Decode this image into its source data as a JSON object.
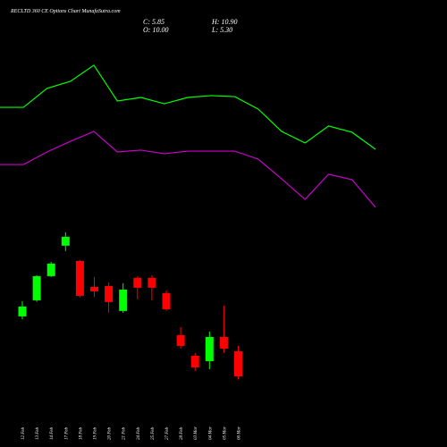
{
  "chart_data": [
    {
      "type": "candlestick",
      "title": "RECLTD 360  CE Options  Chart MunafaSutra.com",
      "info": [
        "C: 5.85",
        "H: 10.90",
        "O: 10.00",
        "L: 5.30"
      ],
      "categories": [
        "12 Feb",
        "13 Feb",
        "14 Feb",
        "17 Feb",
        "18 Feb",
        "19 Feb",
        "20 Feb",
        "21 Feb",
        "24 Feb",
        "25 Feb",
        "27 Feb",
        "28 Feb",
        "03 Mar",
        "04 Mar",
        "05 Mar",
        "06 Mar"
      ],
      "open": [
        15.78,
        18.44,
        22.44,
        27.48,
        24.96,
        20.66,
        20.81,
        16.67,
        22.15,
        22.15,
        19.63,
        12.67,
        9.26,
        8.37,
        12.37,
        10.0
      ],
      "high": [
        18.3,
        22.6,
        24.8,
        29.7,
        25.1,
        22.3,
        21.4,
        21.26,
        22.44,
        22.6,
        20.07,
        14.0,
        9.7,
        13.26,
        17.56,
        10.9
      ],
      "low": [
        15.3,
        18.2,
        22.3,
        26.6,
        18.9,
        19.0,
        16.4,
        16.37,
        18.6,
        18.4,
        16.67,
        10.44,
        6.74,
        7.04,
        9.7,
        5.3
      ],
      "close": [
        17.41,
        22.44,
        24.52,
        28.96,
        19.18,
        19.92,
        18.15,
        20.22,
        20.52,
        20.52,
        16.96,
        10.89,
        7.33,
        12.37,
        10.44,
        5.85
      ],
      "up_color": "#00ff00",
      "down_color": "#ff0000",
      "ylim": [
        0,
        35
      ]
    },
    {
      "type": "line",
      "categories": [
        null,
        null,
        null,
        null,
        null,
        null,
        null,
        null,
        null,
        null,
        null,
        null,
        null,
        null,
        null,
        null,
        null
      ],
      "series": [
        {
          "color": "#00ff00",
          "values": [
            68.4,
            68.4,
            79.5,
            83.7,
            93.2,
            72.1,
            74.2,
            70.5,
            74.2,
            75.3,
            74.7,
            67.4,
            54.2,
            47.4,
            57.4,
            53.7,
            43.7
          ]
        },
        {
          "color": "#cc00cc",
          "values": [
            34.7,
            34.7,
            42.1,
            48.4,
            54.2,
            42.1,
            43.2,
            41.1,
            42.6,
            42.6,
            42.6,
            37.9,
            26.3,
            14.2,
            29.0,
            25.8,
            9.5
          ]
        }
      ],
      "ylim": [
        0,
        100
      ]
    }
  ]
}
